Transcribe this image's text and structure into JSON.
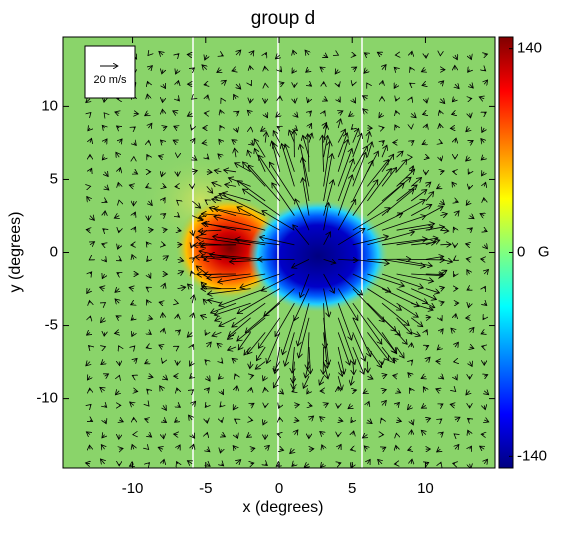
{
  "chart_data": {
    "type": "heatmap",
    "title": "group d",
    "x_label": "x (degrees)",
    "y_label": "y (degrees)",
    "xlim": [
      -14.75,
      14.75
    ],
    "ylim": [
      -14.75,
      14.75
    ],
    "xticks": [
      -10,
      -5,
      0,
      5,
      10
    ],
    "yticks": [
      -10,
      -5,
      0,
      5,
      10
    ],
    "colorbar": {
      "lim": [
        -148,
        148
      ],
      "ticks": [
        140,
        {
          "value": 0,
          "label": "0   G"
        },
        -140
      ]
    },
    "quiver_key": "20 m/s"
  }
}
